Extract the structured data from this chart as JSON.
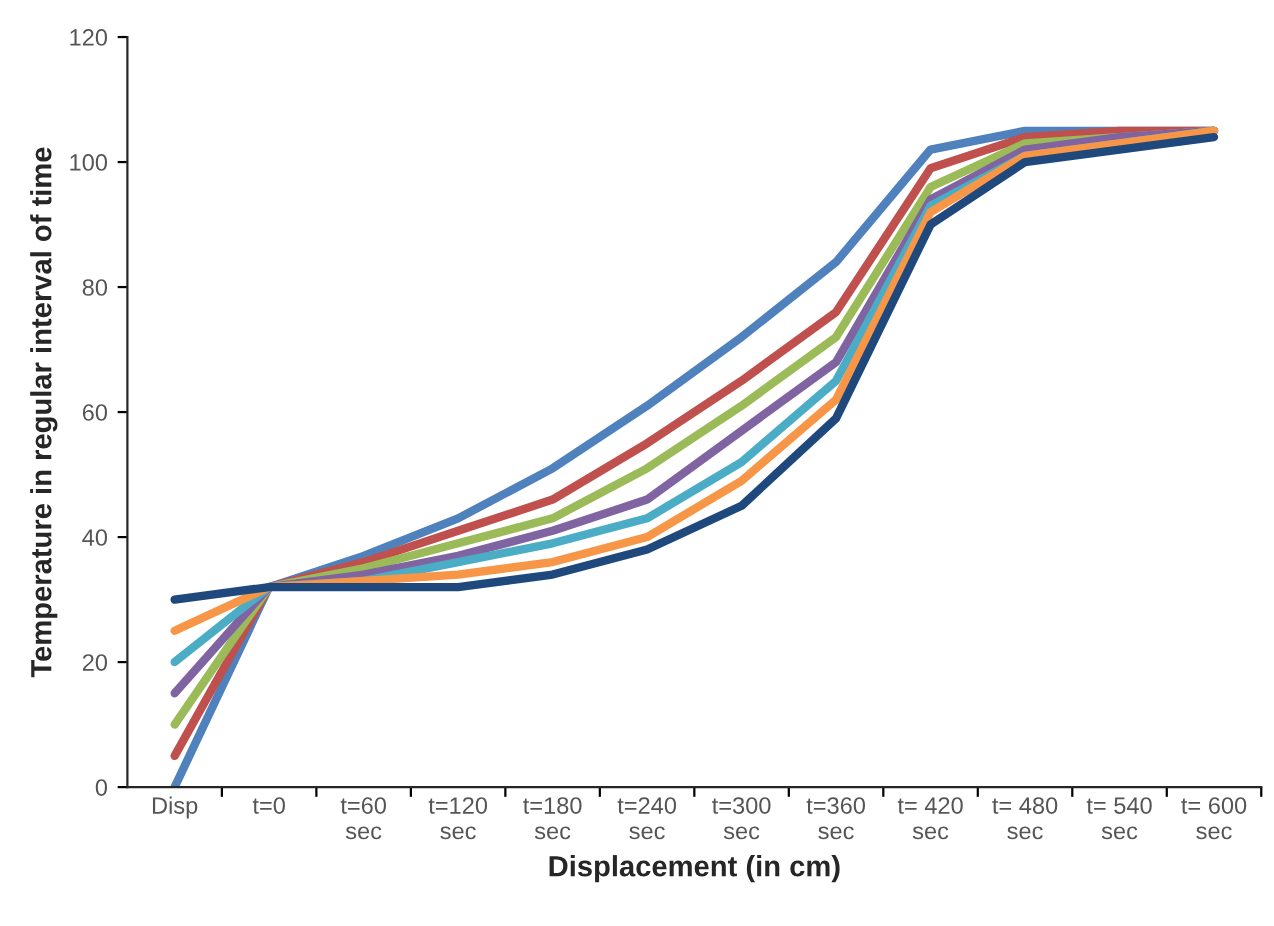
{
  "chart_data": {
    "type": "line",
    "xlabel": "Displacement (in cm)",
    "ylabel": "Temperature in regular interval of time",
    "categories": [
      "Disp",
      "t=0",
      "t=60\nsec",
      "t=120\nsec",
      "t=180\nsec",
      "t=240\nsec",
      "t=300\nsec",
      "t=360\nsec",
      "t= 420\nsec",
      "t= 480\nsec",
      "t= 540\nsec",
      "t= 600\nsec"
    ],
    "series": [
      {
        "color": "#4f81bd",
        "values": [
          0,
          32,
          37,
          43,
          51,
          61,
          72,
          84,
          102,
          105,
          105,
          105
        ]
      },
      {
        "color": "#c0504d",
        "values": [
          5,
          32,
          36,
          41,
          46,
          55,
          65,
          76,
          99,
          104,
          105,
          105
        ]
      },
      {
        "color": "#9bbb59",
        "values": [
          10,
          32,
          35,
          39,
          43,
          51,
          61,
          72,
          96,
          103,
          104,
          105
        ]
      },
      {
        "color": "#8064a2",
        "values": [
          15,
          32,
          34,
          37,
          41,
          46,
          57,
          68,
          94,
          102,
          104,
          105
        ]
      },
      {
        "color": "#4bacc6",
        "values": [
          20,
          32,
          33,
          36,
          39,
          43,
          52,
          65,
          93,
          101,
          103,
          105
        ]
      },
      {
        "color": "#f79646",
        "values": [
          25,
          32,
          33,
          34,
          36,
          40,
          49,
          62,
          92,
          101,
          103,
          105
        ]
      },
      {
        "color": "#1f497d",
        "values": [
          30,
          32,
          32,
          32,
          34,
          38,
          45,
          59,
          90,
          100,
          102,
          104
        ]
      }
    ],
    "ylim": [
      0,
      120
    ],
    "yticks": [
      0,
      20,
      40,
      60,
      80,
      100,
      120
    ],
    "grid": false,
    "marker": "none",
    "line_style": "solid"
  }
}
